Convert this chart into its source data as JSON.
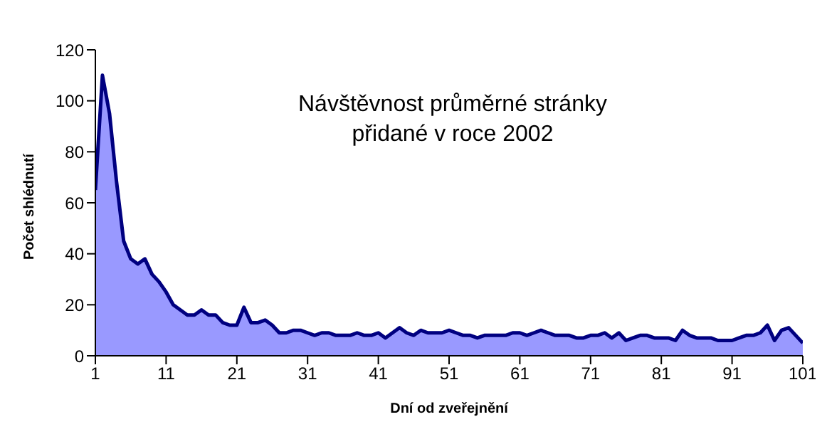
{
  "chart_data": {
    "type": "area",
    "title": "Návštěvnost průměrné stránky přidané v roce 2002",
    "xlabel": "Dní od zveřejnění",
    "ylabel": "Počet shlédnutí",
    "x": [
      1,
      2,
      3,
      4,
      5,
      6,
      7,
      8,
      9,
      10,
      11,
      12,
      13,
      14,
      15,
      16,
      17,
      18,
      19,
      20,
      21,
      22,
      23,
      24,
      25,
      26,
      27,
      28,
      29,
      30,
      31,
      32,
      33,
      34,
      35,
      36,
      37,
      38,
      39,
      40,
      41,
      42,
      43,
      44,
      45,
      46,
      47,
      48,
      49,
      50,
      51,
      52,
      53,
      54,
      55,
      56,
      57,
      58,
      59,
      60,
      61,
      62,
      63,
      64,
      65,
      66,
      67,
      68,
      69,
      70,
      71,
      72,
      73,
      74,
      75,
      76,
      77,
      78,
      79,
      80,
      81,
      82,
      83,
      84,
      85,
      86,
      87,
      88,
      89,
      90,
      91,
      92,
      93,
      94,
      95,
      96,
      97,
      98,
      99,
      100,
      101
    ],
    "series": [
      {
        "color": "#9999ff",
        "values": [
          65,
          110,
          95,
          68,
          45,
          38,
          36,
          38,
          32,
          29,
          25,
          20,
          18,
          16,
          16,
          18,
          16,
          16,
          13,
          12,
          12,
          19,
          13,
          13,
          14,
          12,
          9,
          9,
          10,
          10,
          9,
          8,
          9,
          9,
          8,
          8,
          8,
          9,
          8,
          8,
          9,
          7,
          9,
          11,
          9,
          8,
          10,
          9,
          9,
          9,
          10,
          9,
          8,
          8,
          7,
          8,
          8,
          8,
          8,
          9,
          9,
          8,
          9,
          10,
          9,
          8,
          8,
          8,
          7,
          7,
          8,
          8,
          9,
          7,
          9,
          6,
          7,
          8,
          8,
          7,
          7,
          7,
          6,
          10,
          8,
          7,
          7,
          7,
          6,
          6,
          6,
          7,
          8,
          8,
          9,
          12,
          6,
          10,
          11,
          8,
          5
        ]
      }
    ],
    "xlim": [
      1,
      101
    ],
    "xticks": [
      1,
      11,
      21,
      31,
      41,
      51,
      61,
      71,
      81,
      91,
      101
    ],
    "ylim": [
      0,
      120
    ],
    "yticks": [
      0,
      20,
      40,
      60,
      80,
      100,
      120
    ],
    "grid": false,
    "legend": false
  }
}
